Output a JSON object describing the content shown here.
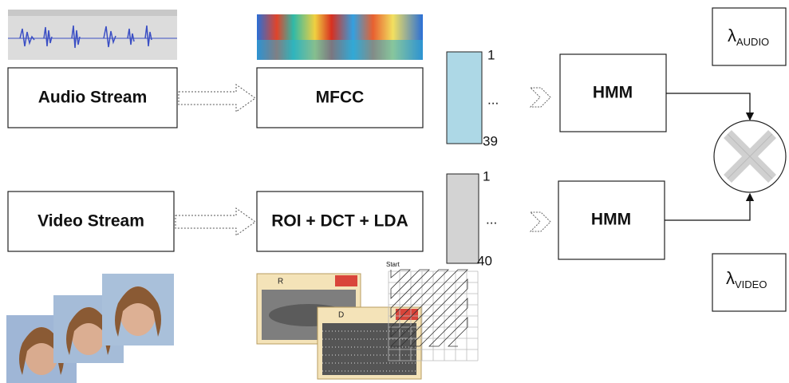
{
  "audio": {
    "stream": "Audio Stream",
    "feature": "MFCC",
    "vector": {
      "top": "1",
      "middle": "...",
      "bottom": "39"
    },
    "model": "HMM",
    "weight": {
      "symbol": "λ",
      "subscript": "AUDIO"
    }
  },
  "video": {
    "stream": "Video Stream",
    "feature": "ROI + DCT + LDA",
    "vector": {
      "top": "1",
      "middle": "...",
      "bottom": "40"
    },
    "model": "HMM",
    "weight": {
      "symbol": "λ",
      "subscript": "VIDEO"
    },
    "window_titles": [
      "R",
      "D"
    ],
    "scan_label": "Start"
  }
}
